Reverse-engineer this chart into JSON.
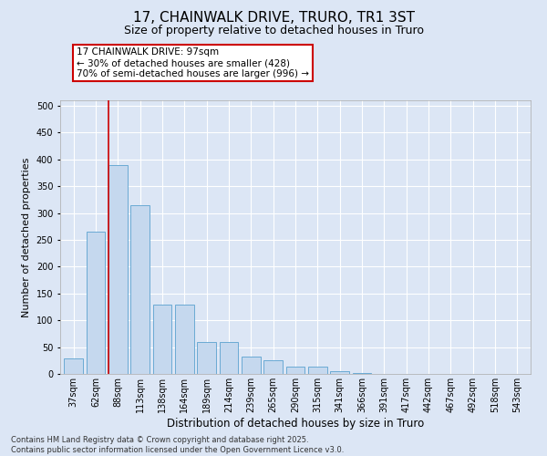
{
  "title": "17, CHAINWALK DRIVE, TRURO, TR1 3ST",
  "subtitle": "Size of property relative to detached houses in Truro",
  "xlabel": "Distribution of detached houses by size in Truro",
  "ylabel": "Number of detached properties",
  "categories": [
    "37sqm",
    "62sqm",
    "88sqm",
    "113sqm",
    "138sqm",
    "164sqm",
    "189sqm",
    "214sqm",
    "239sqm",
    "265sqm",
    "290sqm",
    "315sqm",
    "341sqm",
    "366sqm",
    "391sqm",
    "417sqm",
    "442sqm",
    "467sqm",
    "492sqm",
    "518sqm",
    "543sqm"
  ],
  "values": [
    29,
    265,
    390,
    315,
    130,
    130,
    60,
    60,
    33,
    25,
    14,
    14,
    5,
    1,
    0,
    0,
    0,
    0,
    0,
    0,
    0
  ],
  "bar_color": "#c5d8ee",
  "bar_edge_color": "#6aaad4",
  "vline_color": "#cc0000",
  "vline_x_index": 2,
  "annotation_text": "17 CHAINWALK DRIVE: 97sqm\n← 30% of detached houses are smaller (428)\n70% of semi-detached houses are larger (996) →",
  "annotation_box_facecolor": "#ffffff",
  "annotation_box_edgecolor": "#cc0000",
  "ylim": [
    0,
    510
  ],
  "yticks": [
    0,
    50,
    100,
    150,
    200,
    250,
    300,
    350,
    400,
    450,
    500
  ],
  "bg_color": "#dce6f5",
  "grid_color": "#ffffff",
  "footer": "Contains HM Land Registry data © Crown copyright and database right 2025.\nContains public sector information licensed under the Open Government Licence v3.0.",
  "title_fontsize": 11,
  "subtitle_fontsize": 9,
  "tick_fontsize": 7,
  "ylabel_fontsize": 8,
  "xlabel_fontsize": 8.5,
  "footer_fontsize": 6,
  "ann_fontsize": 7.5
}
